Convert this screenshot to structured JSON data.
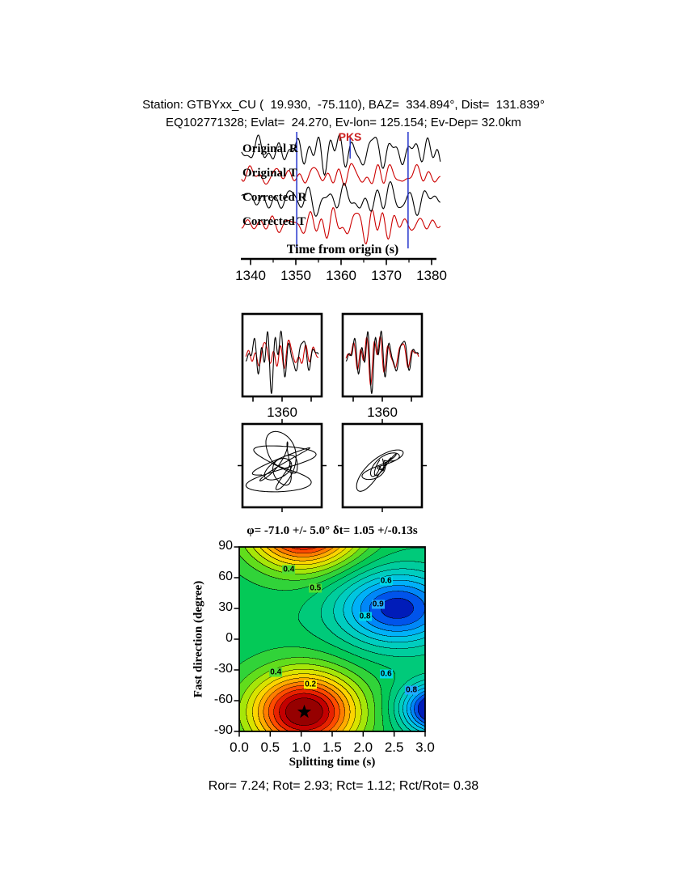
{
  "header": {
    "line1": "Station: GTBYxx_CU (  19.930,  -75.110), BAZ=  334.894°, Dist=  131.839°",
    "line2": "EQ102771328; Evlat=  24.270, Ev-lon= 125.154; Ev-Dep= 32.0km"
  },
  "footer": {
    "stats": "Ror= 7.24; Rot= 2.93; Rct= 1.12; Rct/Rot= 0.38"
  },
  "colors": {
    "background": "#ffffff",
    "text": "#000000",
    "radial_trace": "#000000",
    "transverse_trace": "#cc0000",
    "window_marker": "#2233cc"
  },
  "chart_data": [
    {
      "type": "line",
      "name": "waveform-panel",
      "xlabel": "Time from origin (s)",
      "xlim": [
        1338,
        1382
      ],
      "xticks": [
        1340,
        1350,
        1360,
        1370,
        1380
      ],
      "traces": [
        {
          "label": "Original R",
          "color": "#000000",
          "seed": 101
        },
        {
          "label": "Original T",
          "color": "#cc0000",
          "seed": 202
        },
        {
          "label": "Corrected R",
          "color": "#000000",
          "seed": 303
        },
        {
          "label": "Corrected T",
          "color": "#cc0000",
          "seed": 404
        }
      ],
      "phase_marker": {
        "label": "PKS",
        "time": 1362,
        "color": "#cc2222"
      },
      "window": {
        "start": 1350.2,
        "end": 1374.8,
        "color": "#2233cc"
      }
    },
    {
      "type": "line",
      "name": "window-seismograms",
      "tick_label": "1360",
      "xlim": [
        1347.5,
        1372.5
      ],
      "xticks": [
        1350,
        1360,
        1370
      ],
      "colors": [
        "#000000",
        "#cc0000"
      ],
      "panels": [
        {
          "name": "original",
          "seeds": [
            101,
            202
          ]
        },
        {
          "name": "corrected",
          "seeds": [
            101,
            101
          ]
        }
      ]
    },
    {
      "type": "scatter",
      "name": "particle-motion",
      "panels": [
        {
          "name": "original",
          "seeds": [
            11,
            12
          ]
        },
        {
          "name": "corrected",
          "seeds": [
            21,
            22
          ]
        }
      ]
    },
    {
      "type": "heatmap",
      "name": "splitting-error-surface",
      "title": "φ= -71.0 +/- 5.0° δt= 1.05 +/-0.13s",
      "xlabel": "Splitting time (s)",
      "ylabel": "Fast direction (degree)",
      "xlim": [
        0,
        3
      ],
      "ylim": [
        -90,
        90
      ],
      "xticks": [
        "0.0",
        "0.5",
        "1.0",
        "1.5",
        "2.0",
        "2.5",
        "3.0"
      ],
      "yticks": [
        90,
        60,
        30,
        0,
        -30,
        -60,
        -90
      ],
      "contour_interval": 0.05,
      "best_fit": {
        "dt": 1.05,
        "dt_err": 0.13,
        "phi": -71.0,
        "phi_err": 5.0
      },
      "field": {
        "base": 0.58,
        "min1": {
          "dt": 1.05,
          "sdt": 0.85,
          "phi": -71,
          "sphi": 38,
          "amp": 0.6
        },
        "high1": {
          "dt": 2.55,
          "sdt": 0.95,
          "phi": 30,
          "sphi": 36,
          "amp": 0.4
        },
        "high2": {
          "dt": 3.2,
          "sdt": 0.55,
          "phi": -68,
          "sphi": 24,
          "amp": 0.52
        }
      },
      "palette": [
        [
          0.0,
          "#7f0000"
        ],
        [
          0.08,
          "#c80000"
        ],
        [
          0.16,
          "#ff3c00"
        ],
        [
          0.24,
          "#ff8c00"
        ],
        [
          0.32,
          "#ffd200"
        ],
        [
          0.4,
          "#c8eb00"
        ],
        [
          0.48,
          "#5adc1e"
        ],
        [
          0.58,
          "#00c85a"
        ],
        [
          0.68,
          "#00cda0"
        ],
        [
          0.76,
          "#00cdd7"
        ],
        [
          0.84,
          "#00aaff"
        ],
        [
          0.92,
          "#005af0"
        ],
        [
          1.0,
          "#0000a0"
        ]
      ],
      "contour_labels": [
        {
          "text": "0.4",
          "dt": 0.8,
          "phi": 68,
          "bg": "#55dd33"
        },
        {
          "text": "0.5",
          "dt": 1.23,
          "phi": 50,
          "bg": "#55dd33"
        },
        {
          "text": "0.6",
          "dt": 2.37,
          "phi": 57,
          "bg": "#00d8e8"
        },
        {
          "text": "0.9",
          "dt": 2.24,
          "phi": 34,
          "bg": "#22aaff"
        },
        {
          "text": "0.8",
          "dt": 2.03,
          "phi": 22,
          "bg": "#00d8e8"
        },
        {
          "text": "0.4",
          "dt": 0.59,
          "phi": -32,
          "bg": "#55dd33"
        },
        {
          "text": "0.2",
          "dt": 1.15,
          "phi": -44,
          "bg": "#ffee00"
        },
        {
          "text": "0.6",
          "dt": 2.37,
          "phi": -34,
          "bg": "#00d8e8"
        },
        {
          "text": "0.8",
          "dt": 2.78,
          "phi": -50,
          "bg": "#22aaff"
        }
      ]
    }
  ]
}
